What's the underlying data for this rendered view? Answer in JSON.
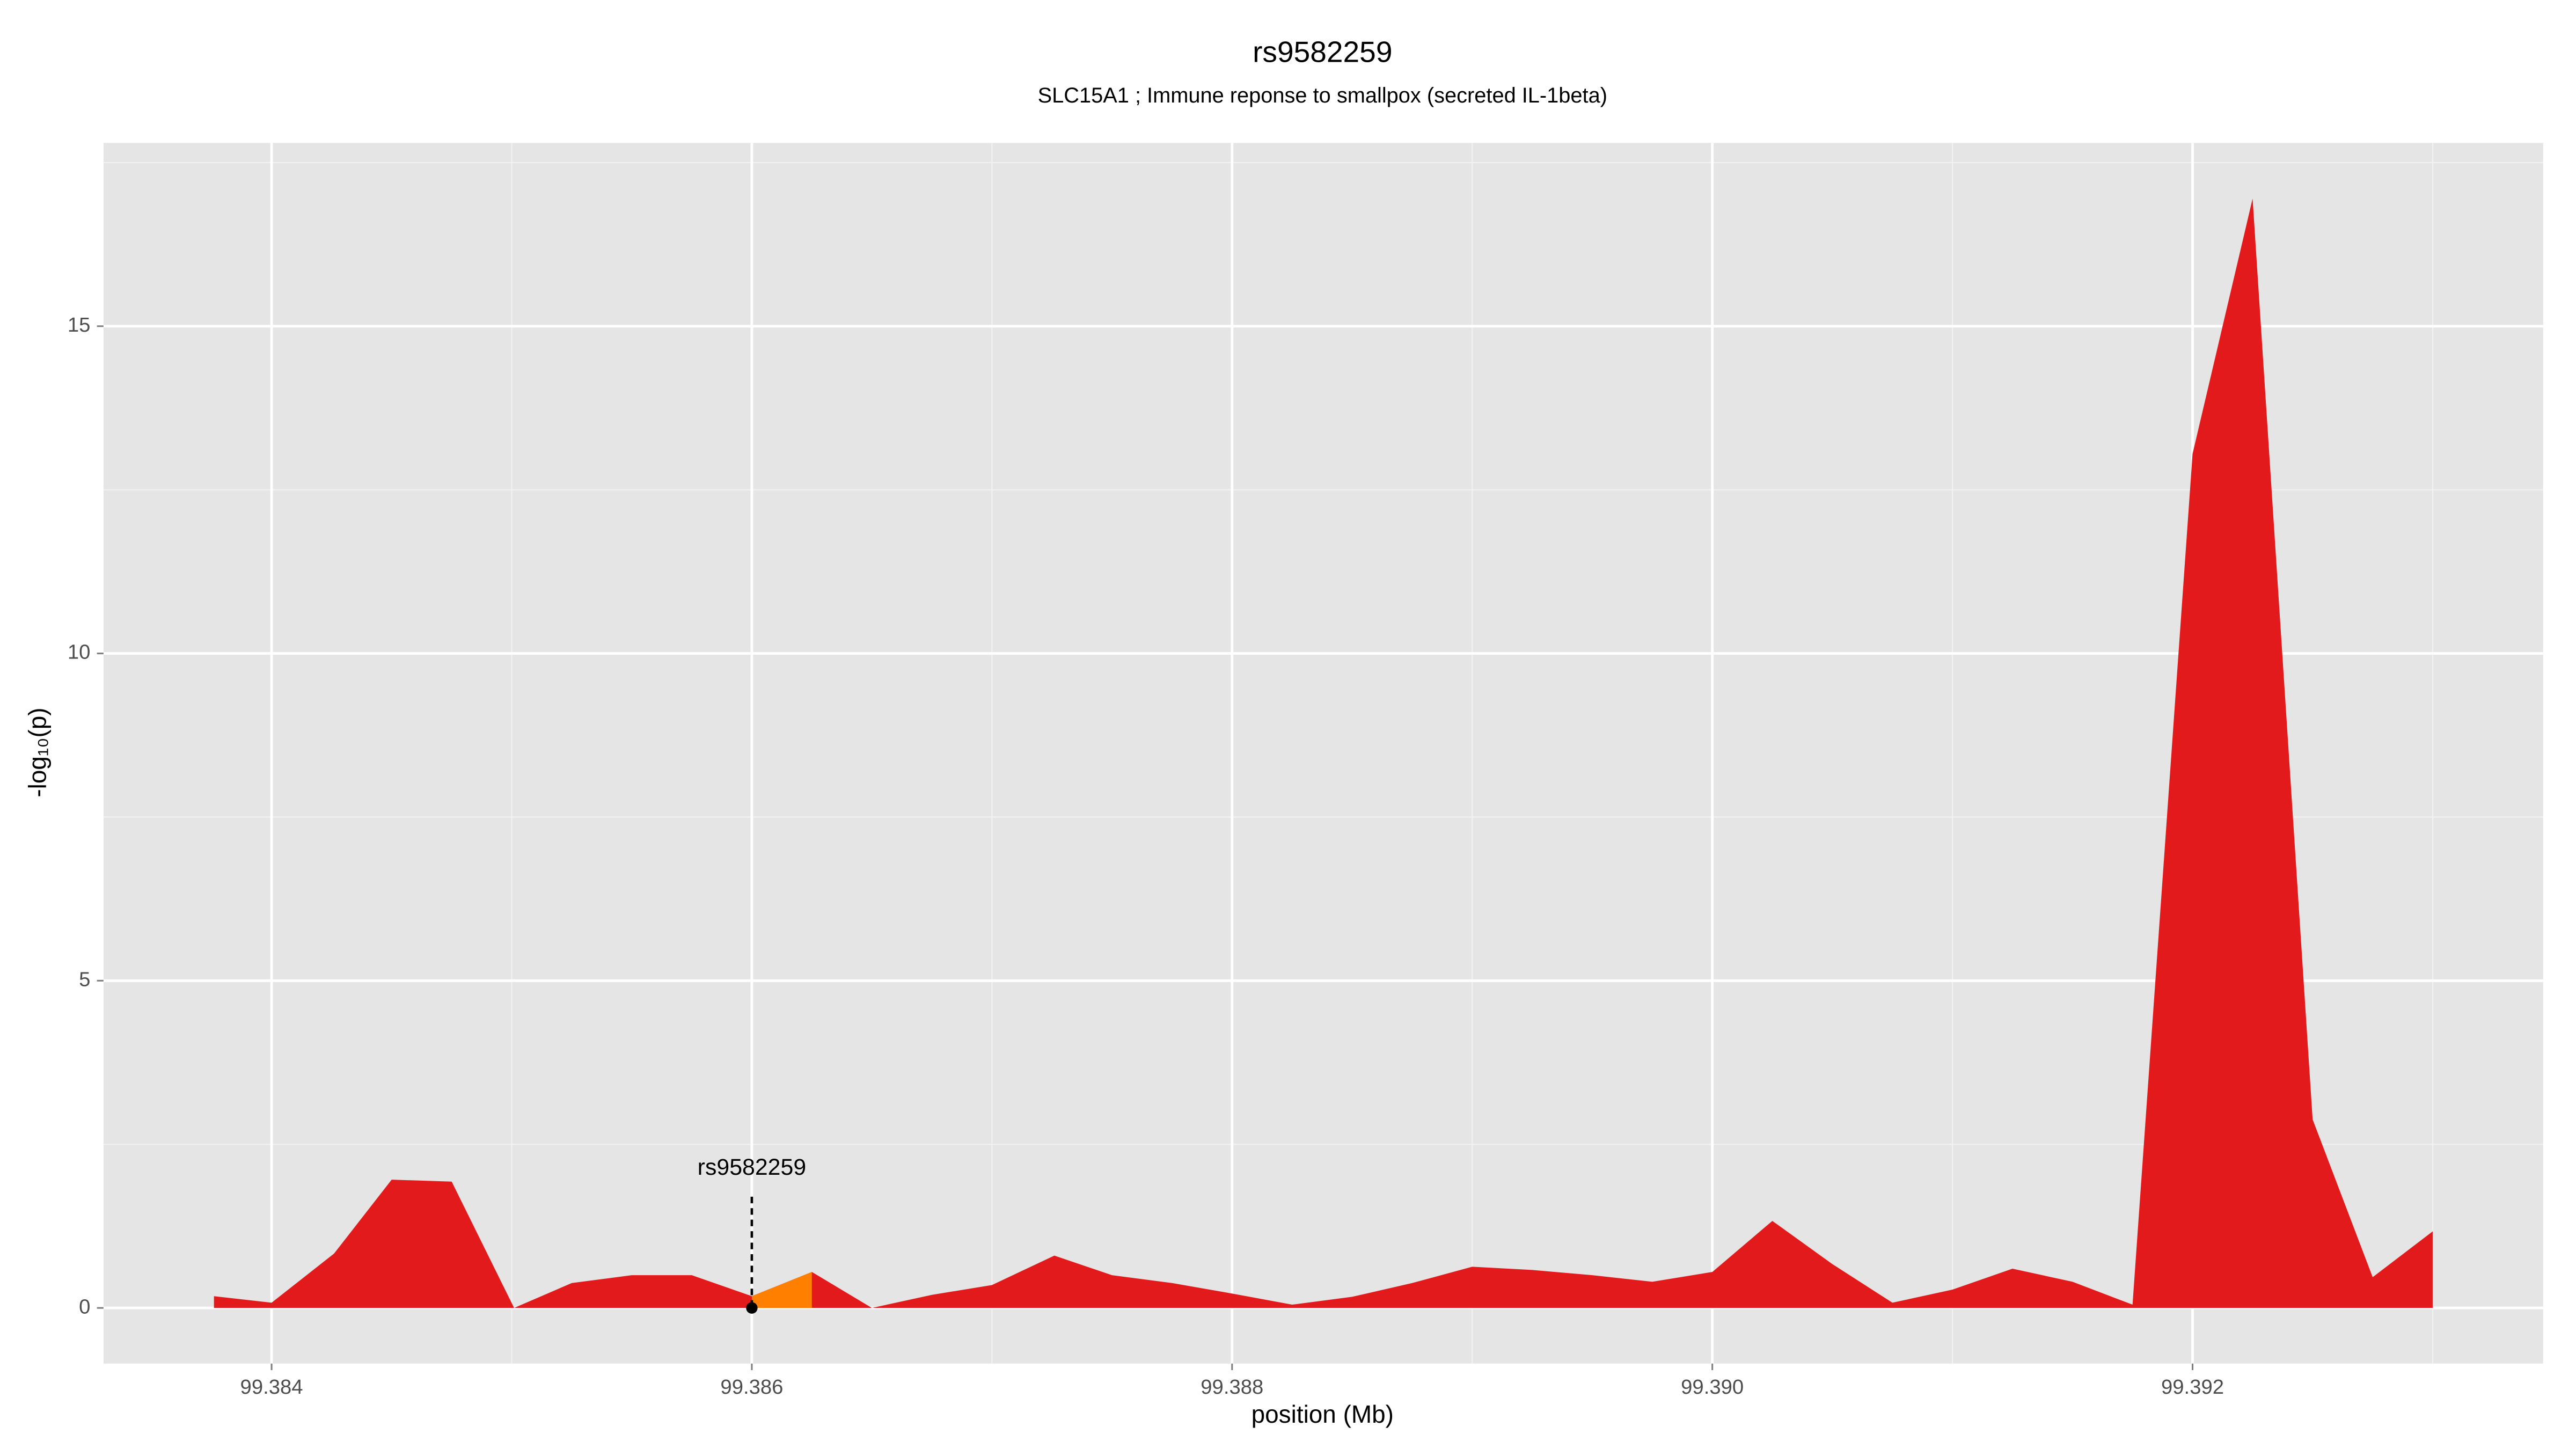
{
  "chart_data": {
    "type": "area",
    "title": "rs9582259",
    "subtitle": "SLC15A1 ; Immune reponse to smallpox (secreted IL-1beta)",
    "x_label": "position (Mb)",
    "y_label": "-log₁₀(p)",
    "series": [
      {
        "color": "#e31a1c",
        "x": [
          99.38376,
          99.384,
          99.38426,
          99.3845,
          99.38475,
          99.38501,
          99.38525,
          99.3855,
          99.38575,
          99.386,
          99.38625,
          99.3865,
          99.38675,
          99.387,
          99.38726,
          99.3875,
          99.38775,
          99.388,
          99.38825,
          99.3885,
          99.38875,
          99.389,
          99.38925,
          99.3895,
          99.38975,
          99.39,
          99.39025,
          99.3905,
          99.39075,
          99.391,
          99.39125,
          99.3915,
          99.39175,
          99.392,
          99.39225,
          99.3925,
          99.39275,
          99.393
        ],
        "values": [
          0.18,
          0.08,
          0.83,
          1.96,
          1.93,
          0,
          0.38,
          0.5,
          0.5,
          0.18,
          0.55,
          0,
          0.2,
          0.35,
          0.8,
          0.5,
          0.38,
          0.22,
          0.05,
          0.17,
          0.38,
          0.63,
          0.58,
          0.5,
          0.4,
          0.55,
          1.33,
          0.67,
          0.08,
          0.28,
          0.6,
          0.4,
          0.05,
          13.05,
          16.95,
          2.88,
          0.47,
          1.17
        ]
      },
      {
        "color": "#ff7f00",
        "x": [
          99.386,
          99.38625
        ],
        "values": [
          0.18,
          0.55
        ]
      }
    ],
    "annotation": {
      "text": "rs9582259",
      "x": 99.386,
      "y": 0,
      "line_top": 1.7
    },
    "xlim": [
      99.3833,
      99.39346
    ],
    "ylim": [
      -0.85,
      17.8
    ],
    "xticks": [
      99.384,
      99.386,
      99.388,
      {
        "value": 99.39,
        "label": "99.390"
      },
      99.392
    ],
    "yticks": [
      0,
      5,
      10,
      15
    ],
    "minor_xticks": [
      99.385,
      99.387,
      99.389,
      99.391,
      99.393
    ],
    "minor_yticks": [
      2.5,
      7.5,
      12.5,
      17.5
    ],
    "grid": true
  }
}
